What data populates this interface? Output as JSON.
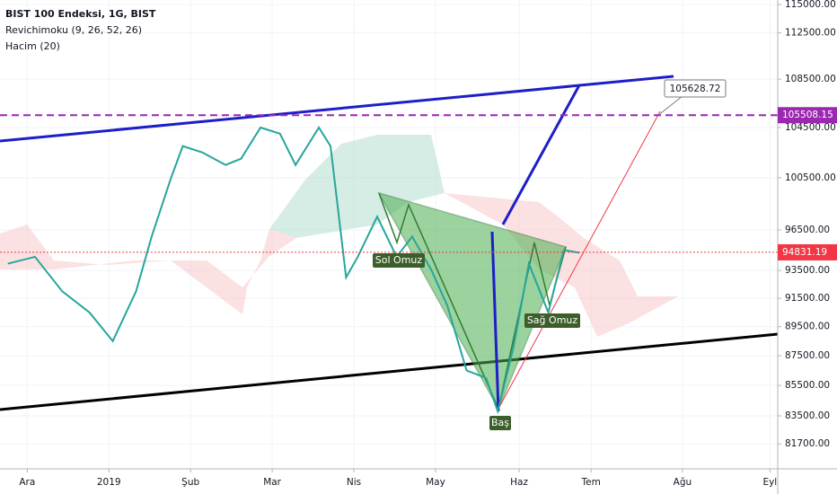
{
  "chart_data": {
    "type": "line",
    "title": "BIST 100 Endeksi, 1G, BIST",
    "indicators": [
      "Revichimoku (9, 26, 52, 26)",
      "Hacim (20)"
    ],
    "x": [
      2,
      9,
      16,
      23,
      29,
      35,
      39,
      44,
      47,
      52,
      58,
      62,
      67,
      72,
      76,
      82,
      85,
      89,
      92,
      97,
      102,
      106,
      111,
      115,
      120,
      125,
      128,
      132,
      136,
      141,
      145,
      149
    ],
    "values": [
      94000,
      94500,
      92000,
      90500,
      88500,
      92000,
      96000,
      100500,
      103000,
      102500,
      101500,
      102000,
      104500,
      104000,
      101500,
      104500,
      103000,
      93000,
      94500,
      97500,
      94500,
      96000,
      93500,
      91000,
      86500,
      86000,
      83800,
      88000,
      94000,
      90500,
      95000,
      94800
    ],
    "color": "#26a69a",
    "log_scale": true,
    "grid": true,
    "xlim": [
      0,
      200
    ],
    "xticks": [
      {
        "value": 7,
        "label": "Ara"
      },
      {
        "value": 28,
        "label": "2019"
      },
      {
        "value": 49,
        "label": "Şub"
      },
      {
        "value": 70,
        "label": "Mar"
      },
      {
        "value": 91,
        "label": "Nis"
      },
      {
        "value": 112,
        "label": "May"
      },
      {
        "value": 133.5,
        "label": "Haz"
      },
      {
        "value": 152,
        "label": "Tem"
      },
      {
        "value": 175.5,
        "label": "Ağu"
      },
      {
        "value": 198,
        "label": "Eyl"
      }
    ],
    "ylim": [
      80130,
      115400
    ],
    "yticks": [
      {
        "value": 115000,
        "label": "115000.00"
      },
      {
        "value": 112500,
        "label": "112500.00"
      },
      {
        "value": 108500,
        "label": "108500.00"
      },
      {
        "value": 104500,
        "label": "104500.00"
      },
      {
        "value": 100500,
        "label": "100500.00"
      },
      {
        "value": 96500,
        "label": "96500.00"
      },
      {
        "value": 93500,
        "label": "93500.00"
      },
      {
        "value": 91500,
        "label": "91500.00"
      },
      {
        "value": 89500,
        "label": "89500.00"
      },
      {
        "value": 87500,
        "label": "87500.00"
      },
      {
        "value": 85500,
        "label": "85500.00"
      },
      {
        "value": 83500,
        "label": "83500.00"
      },
      {
        "value": 81700,
        "label": "81700.00"
      }
    ],
    "levels": [
      {
        "value": 105508.15,
        "color": "#9c27b0"
      },
      {
        "value": 94831.19,
        "color": "#f23645"
      }
    ],
    "target": 105628.72,
    "annotations": [
      "Sol Omuz",
      "Baş",
      "Sağ Omuz"
    ]
  }
}
